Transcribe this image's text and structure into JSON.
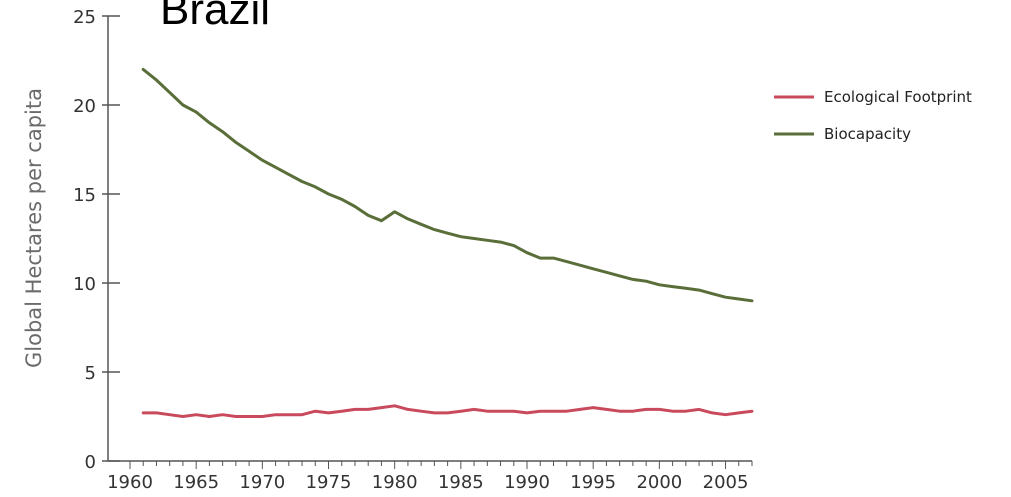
{
  "chart_data": {
    "type": "line",
    "title": "Brazil",
    "xlabel": "",
    "ylabel": "Global Hectares per capita",
    "xlim": [
      1960,
      2007
    ],
    "ylim": [
      0,
      25
    ],
    "x_ticks": [
      1960,
      1965,
      1970,
      1975,
      1980,
      1985,
      1990,
      1995,
      2000,
      2005
    ],
    "y_ticks": [
      0,
      5,
      10,
      15,
      20,
      25
    ],
    "grid": false,
    "legend_position": "top-right",
    "x": [
      1961,
      1962,
      1963,
      1964,
      1965,
      1966,
      1967,
      1968,
      1969,
      1970,
      1971,
      1972,
      1973,
      1974,
      1975,
      1976,
      1977,
      1978,
      1979,
      1980,
      1981,
      1982,
      1983,
      1984,
      1985,
      1986,
      1987,
      1988,
      1989,
      1990,
      1991,
      1992,
      1993,
      1994,
      1995,
      1996,
      1997,
      1998,
      1999,
      2000,
      2001,
      2002,
      2003,
      2004,
      2005,
      2006,
      2007
    ],
    "series": [
      {
        "name": "Ecological Footprint",
        "color": "#c94a5c",
        "values": [
          2.7,
          2.7,
          2.6,
          2.5,
          2.6,
          2.5,
          2.6,
          2.5,
          2.5,
          2.5,
          2.6,
          2.6,
          2.6,
          2.8,
          2.7,
          2.8,
          2.9,
          2.9,
          3.0,
          3.1,
          2.9,
          2.8,
          2.7,
          2.7,
          2.8,
          2.9,
          2.8,
          2.8,
          2.8,
          2.7,
          2.8,
          2.8,
          2.8,
          2.9,
          3.0,
          2.9,
          2.8,
          2.8,
          2.9,
          2.9,
          2.8,
          2.8,
          2.9,
          2.7,
          2.6,
          2.7,
          2.8
        ]
      },
      {
        "name": "Biocapacity",
        "color": "#5a6e3a",
        "values": [
          22.0,
          21.4,
          20.7,
          20.0,
          19.6,
          19.0,
          18.5,
          17.9,
          17.4,
          16.9,
          16.5,
          16.1,
          15.7,
          15.4,
          15.0,
          14.7,
          14.3,
          13.8,
          13.5,
          14.0,
          13.6,
          13.3,
          13.0,
          12.8,
          12.6,
          12.5,
          12.4,
          12.3,
          12.1,
          11.7,
          11.4,
          11.4,
          11.2,
          11.0,
          10.8,
          10.6,
          10.4,
          10.2,
          10.1,
          9.9,
          9.8,
          9.7,
          9.6,
          9.4,
          9.2,
          9.1,
          9.0
        ]
      }
    ]
  }
}
